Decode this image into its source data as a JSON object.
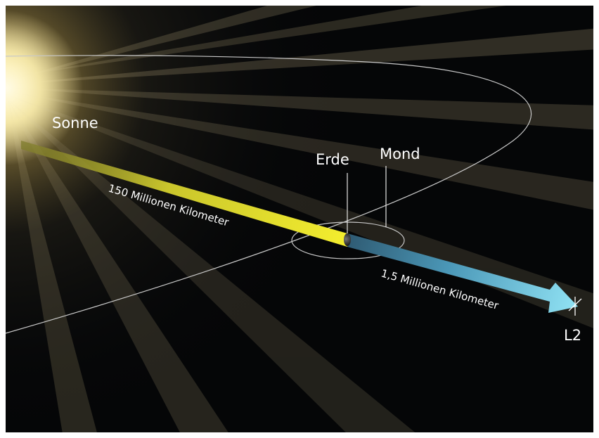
{
  "labels": {
    "sun": "Sonne",
    "earth": "Erde",
    "moon": "Mond",
    "l2": "L2",
    "distance_sun_earth": "150 Millionen Kilometer",
    "distance_earth_l2": "1,5 Millionen Kilometer"
  },
  "colors": {
    "background": "#050607",
    "sun_core": "#fff7c8",
    "sun_glow": "#f3d88a",
    "arrow_yellow": "#e4de2e",
    "arrow_blue": "#7fd6ea",
    "orbit_line": "#c8c8c8",
    "label_text": "#ffffff"
  }
}
